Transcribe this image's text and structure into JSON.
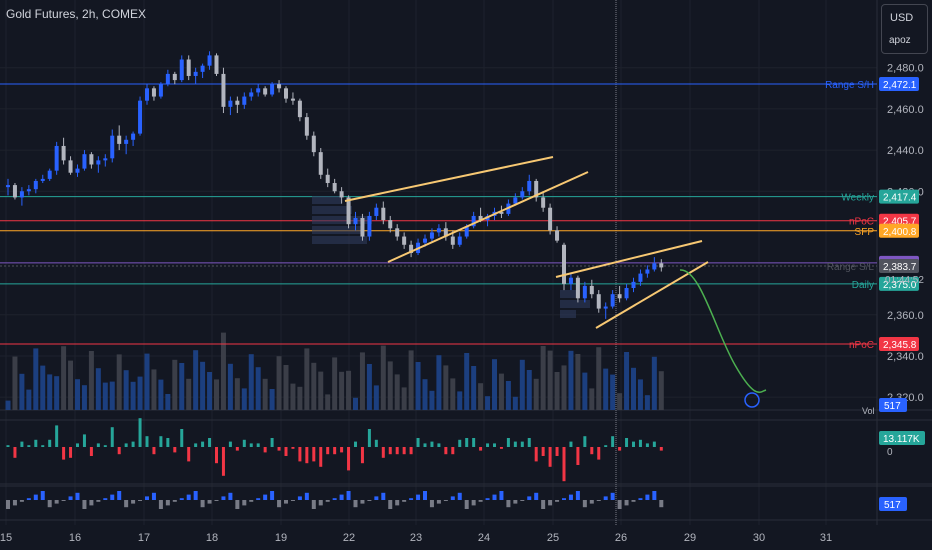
{
  "header": {
    "title": "Gold Futures, 2h, COMEX"
  },
  "scale_box": {
    "currency": "USD",
    "unit": "apoz"
  },
  "colors": {
    "background": "#131722",
    "up": "#2962ff",
    "down": "#b2b5be",
    "blue_line": "#2962ff",
    "teal_line": "#26a69a",
    "red_line": "#f23645",
    "orange_line": "#ffa726",
    "yellow_line": "#f7c873",
    "purple_label": "#7e57c2",
    "green_curve": "#4caf50"
  },
  "chart_data": {
    "type": "candlestick",
    "title": "Gold Futures, 2h, COMEX",
    "ylim": [
      2317,
      2491
    ],
    "y_ticks": [
      "2,480.0",
      "2,460.0",
      "2,440.0",
      "2,420.0",
      "2,360.0",
      "2,340.0",
      "2,320.0"
    ],
    "x_ticks": [
      "15",
      "16",
      "17",
      "18",
      "19",
      "22",
      "23",
      "24",
      "25",
      "26",
      "29",
      "30",
      "31"
    ],
    "candles": [
      [
        2422,
        2426,
        2418,
        2423
      ],
      [
        2423,
        2424,
        2416,
        2417
      ],
      [
        2417,
        2422,
        2413,
        2420
      ],
      [
        2420,
        2423,
        2418,
        2421
      ],
      [
        2421,
        2426,
        2419,
        2425
      ],
      [
        2425,
        2428,
        2424,
        2426
      ],
      [
        2426,
        2431,
        2425,
        2430
      ],
      [
        2430,
        2444,
        2428,
        2442
      ],
      [
        2442,
        2446,
        2433,
        2435
      ],
      [
        2435,
        2437,
        2428,
        2429
      ],
      [
        2429,
        2433,
        2427,
        2431
      ],
      [
        2431,
        2440,
        2430,
        2438
      ],
      [
        2438,
        2439,
        2431,
        2433
      ],
      [
        2433,
        2437,
        2429,
        2435
      ],
      [
        2435,
        2438,
        2432,
        2436
      ],
      [
        2436,
        2450,
        2434,
        2447
      ],
      [
        2447,
        2452,
        2440,
        2443
      ],
      [
        2443,
        2447,
        2438,
        2445
      ],
      [
        2445,
        2449,
        2442,
        2448
      ],
      [
        2448,
        2466,
        2447,
        2464
      ],
      [
        2464,
        2472,
        2462,
        2470
      ],
      [
        2470,
        2471,
        2464,
        2466
      ],
      [
        2466,
        2473,
        2465,
        2472
      ],
      [
        2472,
        2479,
        2471,
        2477
      ],
      [
        2477,
        2478,
        2472,
        2474
      ],
      [
        2474,
        2486,
        2473,
        2484
      ],
      [
        2484,
        2486,
        2474,
        2476
      ],
      [
        2476,
        2480,
        2472,
        2478
      ],
      [
        2478,
        2482,
        2475,
        2481
      ],
      [
        2481,
        2488,
        2479,
        2486
      ],
      [
        2486,
        2487,
        2476,
        2477
      ],
      [
        2477,
        2480,
        2458,
        2461
      ],
      [
        2461,
        2466,
        2457,
        2464
      ],
      [
        2464,
        2466,
        2458,
        2462
      ],
      [
        2462,
        2468,
        2460,
        2466
      ],
      [
        2466,
        2470,
        2464,
        2468
      ],
      [
        2468,
        2472,
        2466,
        2470
      ],
      [
        2470,
        2471,
        2466,
        2467
      ],
      [
        2467,
        2473,
        2466,
        2472
      ],
      [
        2472,
        2474,
        2468,
        2470
      ],
      [
        2470,
        2471,
        2463,
        2465
      ],
      [
        2465,
        2468,
        2462,
        2464
      ],
      [
        2464,
        2465,
        2454,
        2456
      ],
      [
        2456,
        2458,
        2445,
        2447
      ],
      [
        2447,
        2449,
        2437,
        2439
      ],
      [
        2439,
        2441,
        2426,
        2428
      ],
      [
        2428,
        2431,
        2422,
        2424
      ],
      [
        2424,
        2426,
        2419,
        2420
      ],
      [
        2420,
        2422,
        2414,
        2417
      ],
      [
        2417,
        2418,
        2402,
        2404
      ],
      [
        2404,
        2410,
        2401,
        2407
      ],
      [
        2407,
        2409,
        2396,
        2398
      ],
      [
        2398,
        2410,
        2396,
        2408
      ],
      [
        2408,
        2414,
        2406,
        2412
      ],
      [
        2412,
        2415,
        2404,
        2406
      ],
      [
        2406,
        2408,
        2400,
        2402
      ],
      [
        2402,
        2404,
        2396,
        2398
      ],
      [
        2398,
        2400,
        2392,
        2394
      ],
      [
        2394,
        2396,
        2388,
        2390
      ],
      [
        2390,
        2397,
        2389,
        2395
      ],
      [
        2395,
        2399,
        2393,
        2397
      ],
      [
        2397,
        2402,
        2395,
        2400
      ],
      [
        2400,
        2404,
        2398,
        2402
      ],
      [
        2402,
        2405,
        2396,
        2398
      ],
      [
        2398,
        2401,
        2392,
        2394
      ],
      [
        2394,
        2400,
        2393,
        2398
      ],
      [
        2398,
        2404,
        2397,
        2403
      ],
      [
        2403,
        2410,
        2402,
        2408
      ],
      [
        2408,
        2412,
        2405,
        2406
      ],
      [
        2406,
        2409,
        2403,
        2408
      ],
      [
        2408,
        2412,
        2406,
        2410
      ],
      [
        2410,
        2413,
        2407,
        2409
      ],
      [
        2409,
        2416,
        2408,
        2414
      ],
      [
        2414,
        2419,
        2413,
        2417
      ],
      [
        2417,
        2422,
        2416,
        2420
      ],
      [
        2420,
        2428,
        2418,
        2425
      ],
      [
        2425,
        2426,
        2415,
        2417
      ],
      [
        2417,
        2420,
        2410,
        2412
      ],
      [
        2412,
        2414,
        2399,
        2401
      ],
      [
        2401,
        2403,
        2395,
        2396
      ],
      [
        2394,
        2395,
        2372,
        2375
      ],
      [
        2375,
        2380,
        2372,
        2378
      ],
      [
        2378,
        2379,
        2366,
        2368
      ],
      [
        2368,
        2376,
        2366,
        2374
      ],
      [
        2374,
        2377,
        2368,
        2370
      ],
      [
        2370,
        2372,
        2361,
        2363
      ],
      [
        2363,
        2366,
        2358,
        2364
      ],
      [
        2364,
        2372,
        2363,
        2370
      ],
      [
        2370,
        2374,
        2366,
        2368
      ],
      [
        2368,
        2375,
        2367,
        2373
      ],
      [
        2373,
        2378,
        2371,
        2376
      ],
      [
        2376,
        2382,
        2374,
        2380
      ],
      [
        2380,
        2384,
        2378,
        2382
      ],
      [
        2382,
        2388,
        2381,
        2385
      ],
      [
        2385,
        2387,
        2381,
        2383
      ]
    ],
    "volume_y_ticks": [
      "517"
    ],
    "horizontal_levels": [
      {
        "label": "Range S/H",
        "value": "2,472.1",
        "color": "#2962ff"
      },
      {
        "label": "Weekly",
        "value": "2,417.4",
        "color": "#26a69a"
      },
      {
        "label": "nPoC",
        "value": "2,405.7",
        "color": "#f23645"
      },
      {
        "label": "SFP",
        "value": "2,400.8",
        "color": "#ffa726"
      },
      {
        "label": "",
        "value": "2,385.2",
        "color": "#7e57c2"
      },
      {
        "label": "Range S/L",
        "value": "2,383.7",
        "color": "#50535e"
      },
      {
        "label": "Daily",
        "value": "2,375.0",
        "color": "#26a69a"
      },
      {
        "label": "nPoC",
        "value": "2,345.8",
        "color": "#f23645"
      }
    ],
    "price_countdown": "01:44:52",
    "vol_label": "Vol",
    "volume_value": "517",
    "indicator1_value": "13.117K",
    "indicator1_zero": "0",
    "indicator2_value": "517"
  }
}
